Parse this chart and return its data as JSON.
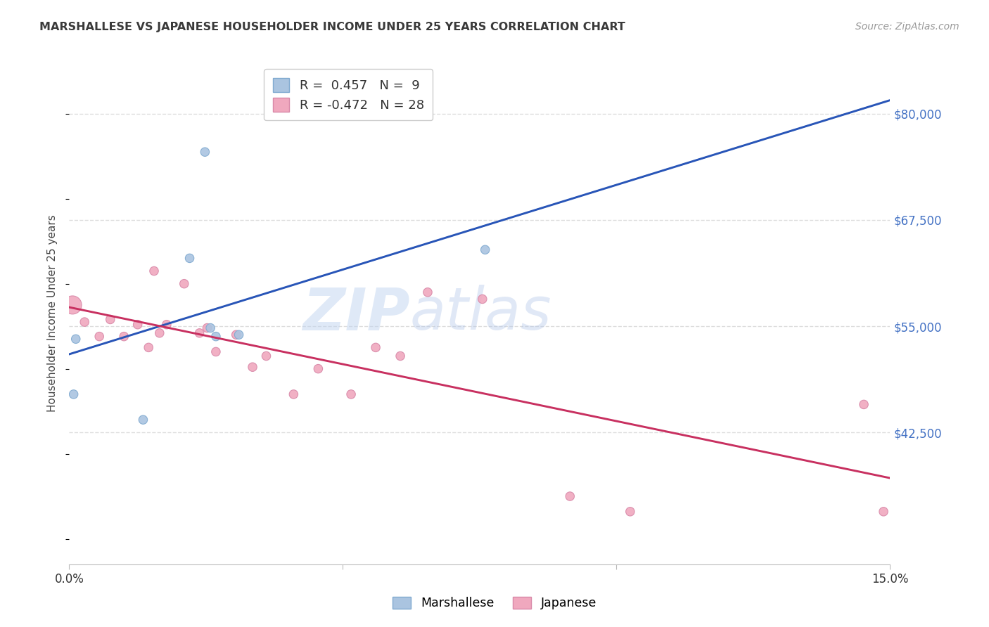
{
  "title": "MARSHALLESE VS JAPANESE HOUSEHOLDER INCOME UNDER 25 YEARS CORRELATION CHART",
  "source_text": "Source: ZipAtlas.com",
  "ylabel": "Householder Income Under 25 years",
  "y_ticks": [
    42500,
    55000,
    67500,
    80000
  ],
  "y_tick_labels": [
    "$42,500",
    "$55,000",
    "$67,500",
    "$80,000"
  ],
  "y_tick_color": "#4472c4",
  "xlim": [
    0.0,
    15.0
  ],
  "ylim": [
    27000,
    86000
  ],
  "legend_r_marshallese": "0.457",
  "legend_n_marshallese": "9",
  "legend_r_japanese": "-0.472",
  "legend_n_japanese": "28",
  "marshallese_color": "#aac4e0",
  "marshallese_edge": "#80aad0",
  "japanese_color": "#f0a8be",
  "japanese_edge": "#d888a8",
  "blue_line_color": "#2855b8",
  "pink_line_color": "#c83060",
  "dashed_line_color": "#b8b8b8",
  "marshallese_points": [
    [
      0.08,
      47000,
      80
    ],
    [
      0.12,
      53500,
      80
    ],
    [
      1.35,
      44000,
      80
    ],
    [
      2.2,
      63000,
      80
    ],
    [
      2.48,
      75500,
      80
    ],
    [
      2.58,
      54800,
      80
    ],
    [
      2.68,
      53800,
      80
    ],
    [
      3.1,
      54000,
      80
    ],
    [
      7.6,
      64000,
      80
    ]
  ],
  "japanese_points": [
    [
      0.06,
      57500,
      350
    ],
    [
      0.28,
      55500,
      80
    ],
    [
      0.55,
      53800,
      80
    ],
    [
      0.75,
      55800,
      80
    ],
    [
      1.0,
      53800,
      80
    ],
    [
      1.25,
      55200,
      80
    ],
    [
      1.45,
      52500,
      80
    ],
    [
      1.55,
      61500,
      80
    ],
    [
      1.65,
      54200,
      80
    ],
    [
      1.78,
      55200,
      80
    ],
    [
      2.1,
      60000,
      80
    ],
    [
      2.38,
      54200,
      80
    ],
    [
      2.52,
      54800,
      80
    ],
    [
      2.68,
      52000,
      80
    ],
    [
      3.05,
      54000,
      80
    ],
    [
      3.35,
      50200,
      80
    ],
    [
      3.6,
      51500,
      80
    ],
    [
      4.1,
      47000,
      80
    ],
    [
      4.55,
      50000,
      80
    ],
    [
      5.15,
      47000,
      80
    ],
    [
      5.6,
      52500,
      80
    ],
    [
      6.05,
      51500,
      80
    ],
    [
      6.55,
      59000,
      80
    ],
    [
      7.55,
      58200,
      80
    ],
    [
      9.15,
      35000,
      80
    ],
    [
      10.25,
      33200,
      80
    ],
    [
      14.52,
      45800,
      80
    ],
    [
      14.88,
      33200,
      80
    ]
  ]
}
